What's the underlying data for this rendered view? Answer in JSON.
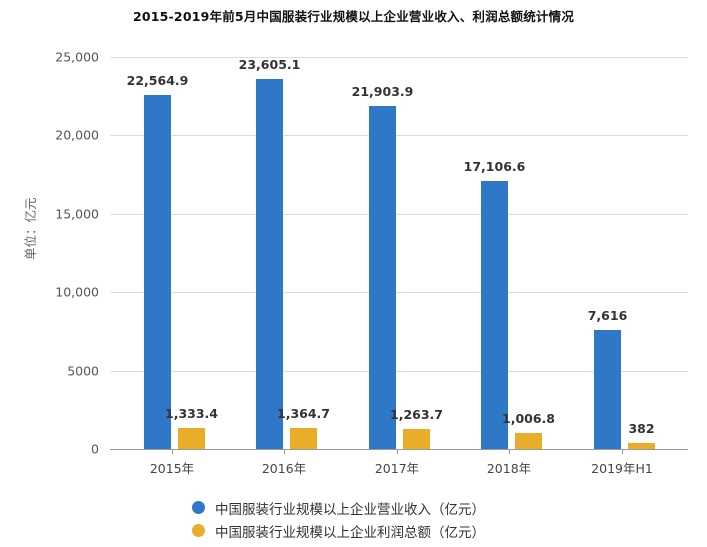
{
  "title": "2015-2019年前5月中国服装行业规模以上企业营业收入、利润总额统计情况",
  "y_axis": {
    "label": "单位：亿元",
    "ticks": [
      "25,000",
      "20,000",
      "15,000",
      "10,000",
      "5000",
      "0"
    ]
  },
  "x_axis": {
    "categories": [
      "2015年",
      "2016年",
      "2017年",
      "2018年",
      "2019年H1"
    ]
  },
  "legend": [
    {
      "label": "中国服装行业规模以上企业营业收入（亿元）",
      "color": "#2f78c8"
    },
    {
      "label": "中国服装行业规模以上企业利润总额（亿元）",
      "color": "#e9ad2a"
    }
  ],
  "labels": {
    "revenue": [
      "22,564.9",
      "23,605.1",
      "21,903.9",
      "17,106.6",
      "7,616"
    ],
    "profit": [
      "1,333.4",
      "1,364.7",
      "1,263.7",
      "1,006.8",
      "382"
    ]
  },
  "chart_data": {
    "type": "bar",
    "title": "2015-2019年前5月中国服装行业规模以上企业营业收入、利润总额统计情况",
    "categories": [
      "2015年",
      "2016年",
      "2017年",
      "2018年",
      "2019年H1"
    ],
    "series": [
      {
        "name": "中国服装行业规模以上企业营业收入（亿元）",
        "color": "#2f78c8",
        "values": [
          22564.9,
          23605.1,
          21903.9,
          17106.6,
          7616
        ]
      },
      {
        "name": "中国服装行业规模以上企业利润总额（亿元）",
        "color": "#e9ad2a",
        "values": [
          1333.4,
          1364.7,
          1263.7,
          1006.8,
          382
        ]
      }
    ],
    "xlabel": "",
    "ylabel": "单位：亿元",
    "ylim": [
      0,
      25000
    ],
    "yticks": [
      0,
      5000,
      10000,
      15000,
      20000,
      25000
    ],
    "grid": true,
    "legend_position": "bottom"
  }
}
